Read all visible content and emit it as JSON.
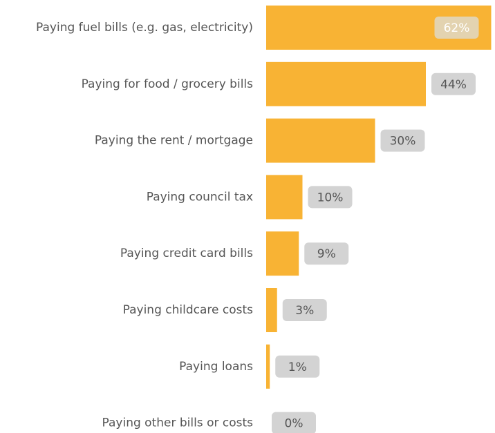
{
  "chart_data": {
    "type": "bar",
    "orientation": "horizontal",
    "categories": [
      "Paying fuel bills (e.g. gas, electricity)",
      "Paying for food / grocery bills",
      "Paying the rent / mortgage",
      "Paying council tax",
      "Paying credit card bills",
      "Paying childcare costs",
      "Paying loans",
      "Paying other bills or costs"
    ],
    "values": [
      62,
      44,
      30,
      10,
      9,
      3,
      1,
      0
    ],
    "value_labels": [
      "62%",
      "44%",
      "30%",
      "10%",
      "9%",
      "3%",
      "1%",
      "0%"
    ],
    "color": "#f8b334"
  }
}
